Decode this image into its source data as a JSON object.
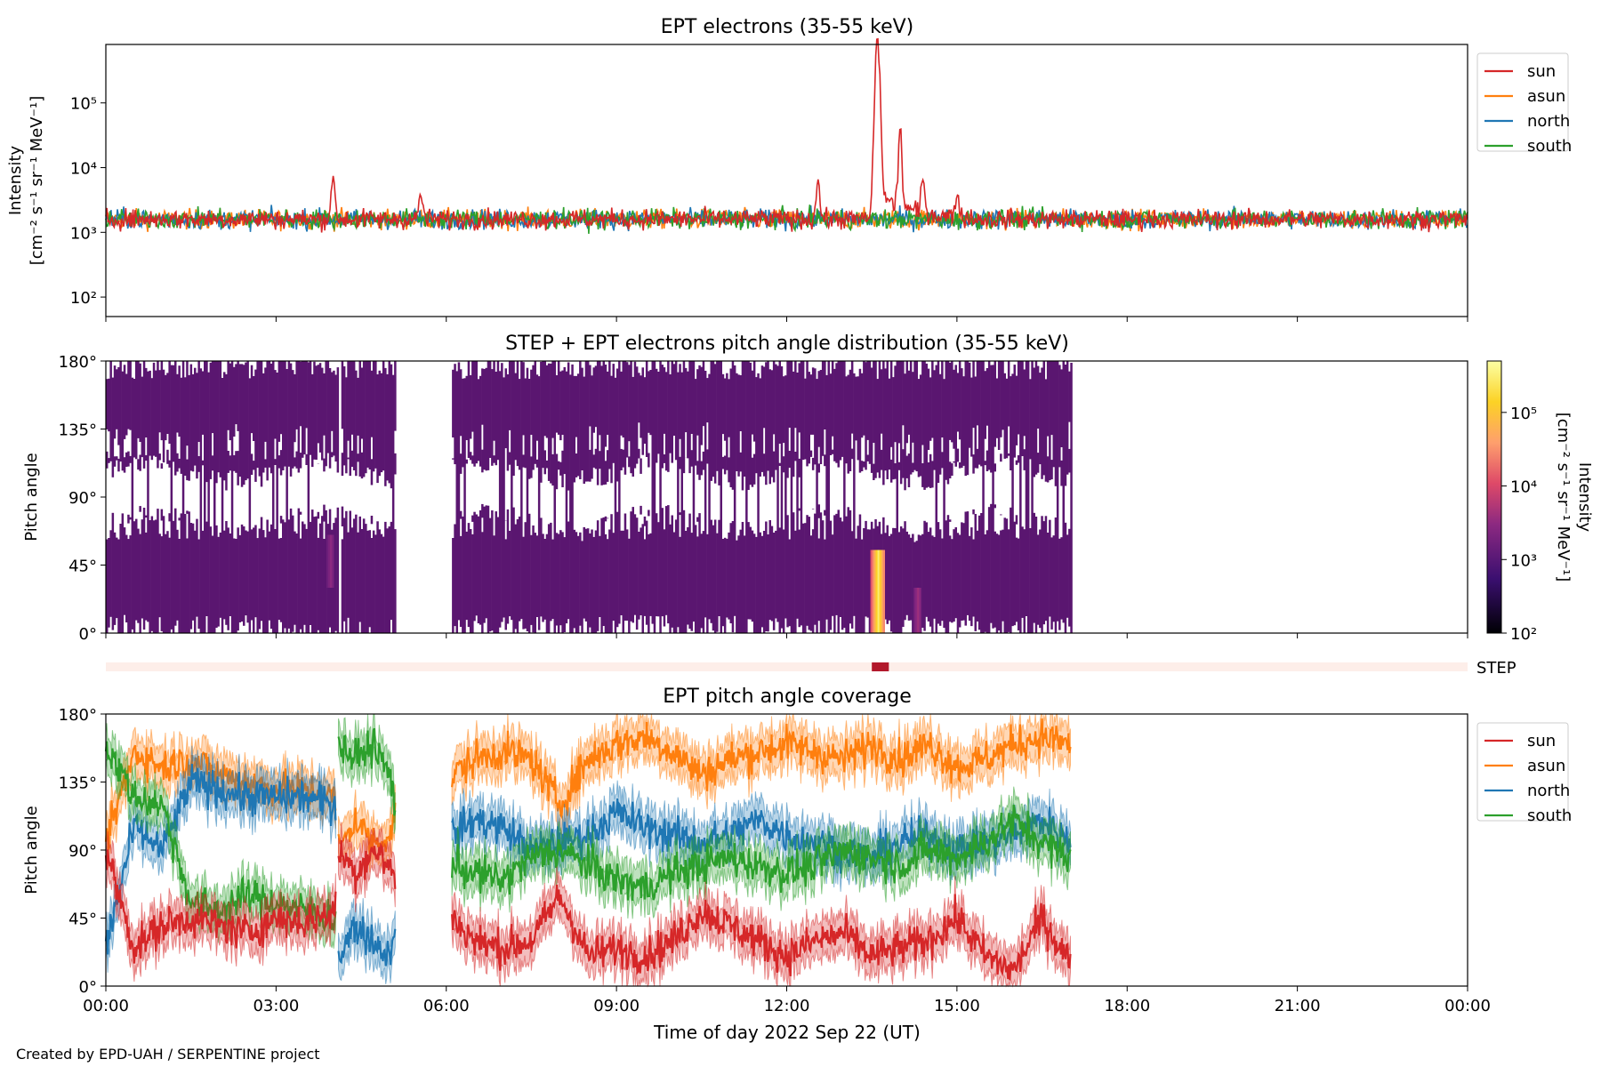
{
  "figure": {
    "credit": "Created by EPD-UAH / SERPENTINE project",
    "xlabel": "Time of day 2022 Sep 22 (UT)",
    "x_tick_labels": [
      "00:00",
      "03:00",
      "06:00",
      "09:00",
      "12:00",
      "15:00",
      "18:00",
      "21:00",
      "00:00"
    ]
  },
  "colors": {
    "sun": "#d62728",
    "asun": "#ff7f0e",
    "north": "#1f77b4",
    "south": "#2ca02c",
    "pad_fill": "#5a1670",
    "step_bar": "#fdeee9",
    "step_mark": "#b2182b"
  },
  "chart_data": [
    {
      "type": "line",
      "title": "EPT electrons (35-55 keV)",
      "ylabel_line1": "Intensity",
      "ylabel_line2": "[cm⁻² s⁻¹ sr⁻¹ MeV⁻¹]",
      "yscale": "log",
      "xlim_hours": [
        0,
        24
      ],
      "ylim": [
        50,
        800000
      ],
      "y_tick_labels": [
        "10²",
        "10³",
        "10⁴",
        "10⁵"
      ],
      "legend_position": "outside-right-top",
      "baseline": 1600,
      "series": [
        {
          "name": "sun",
          "peaks": [
            [
              4.0,
              7500
            ],
            [
              5.55,
              4000
            ],
            [
              12.55,
              6500
            ],
            [
              13.6,
              500000
            ],
            [
              14.0,
              28000
            ],
            [
              14.4,
              5000
            ],
            [
              15.0,
              3800
            ]
          ]
        },
        {
          "name": "asun",
          "peaks": []
        },
        {
          "name": "north",
          "peaks": []
        },
        {
          "name": "south",
          "peaks": []
        }
      ]
    },
    {
      "type": "heatmap",
      "title": "STEP + EPT electrons pitch angle distribution (35-55 keV)",
      "ylabel": "Pitch angle",
      "y_tick_labels": [
        "0°",
        "45°",
        "90°",
        "135°",
        "180°"
      ],
      "ylim": [
        0,
        180
      ],
      "xlim_hours": [
        0,
        24
      ],
      "data_intervals_hours": [
        [
          0,
          4.1
        ],
        [
          4.15,
          5.1
        ],
        [
          6.1,
          17.0
        ]
      ],
      "enhancements": [
        {
          "time": 3.95,
          "pitch_range": [
            30,
            65
          ],
          "intensity": 3000
        },
        {
          "time": 13.6,
          "pitch_range": [
            0,
            55
          ],
          "intensity": 300000
        },
        {
          "time": 14.3,
          "pitch_range": [
            0,
            30
          ],
          "intensity": 4000
        }
      ],
      "colorbar": {
        "label_line1": "Intensity",
        "label_line2": "[cm⁻² s⁻¹ sr⁻¹ MeV⁻¹]",
        "scale": "log",
        "range": [
          100,
          500000
        ],
        "tick_labels": [
          "10²",
          "10³",
          "10⁴",
          "10⁵"
        ]
      }
    },
    {
      "type": "bar",
      "label": "STEP",
      "xlim_hours": [
        0,
        24
      ],
      "marked_interval_hours": [
        13.5,
        13.8
      ]
    },
    {
      "type": "line",
      "title": "EPT pitch angle coverage",
      "ylabel": "Pitch angle",
      "y_tick_labels": [
        "0°",
        "45°",
        "90°",
        "135°",
        "180°"
      ],
      "ylim": [
        0,
        180
      ],
      "xlim_hours": [
        0,
        24
      ],
      "legend_position": "outside-right-top",
      "series": [
        {
          "name": "sun",
          "segments": [
            {
              "t": [
                0.0,
                0.5,
                1.0,
                1.5,
                2.0,
                2.5,
                3.0,
                3.5,
                4.05
              ],
              "pa": [
                90,
                25,
                40,
                45,
                40,
                35,
                45,
                42,
                50
              ]
            },
            {
              "t": [
                4.1,
                4.4,
                4.7,
                5.0,
                5.1
              ],
              "pa": [
                90,
                75,
                90,
                80,
                70
              ]
            },
            {
              "t": [
                6.1,
                6.5,
                7.0,
                7.5,
                8.0,
                8.5,
                9.0,
                9.5,
                10.0,
                10.5,
                11.0,
                11.5,
                12.0,
                12.5,
                13.0,
                13.5,
                14.0,
                14.5,
                15.0,
                15.5,
                16.0,
                16.5,
                17.0
              ],
              "pa": [
                45,
                30,
                25,
                30,
                60,
                20,
                25,
                20,
                30,
                50,
                40,
                30,
                20,
                30,
                35,
                20,
                25,
                30,
                45,
                20,
                10,
                45,
                15
              ]
            }
          ]
        },
        {
          "name": "asun",
          "segments": [
            {
              "t": [
                0.0,
                0.5,
                1.0,
                1.5,
                2.0,
                2.5,
                3.0,
                3.5,
                4.05
              ],
              "pa": [
                95,
                155,
                145,
                150,
                140,
                135,
                130,
                130,
                125
              ]
            },
            {
              "t": [
                4.1,
                4.4,
                4.7,
                5.0,
                5.1
              ],
              "pa": [
                90,
                110,
                95,
                100,
                110
              ]
            },
            {
              "t": [
                6.1,
                6.5,
                7.0,
                7.5,
                8.0,
                8.5,
                9.0,
                9.5,
                10.0,
                10.5,
                11.0,
                11.5,
                12.0,
                12.5,
                13.0,
                13.5,
                14.0,
                14.5,
                15.0,
                15.5,
                16.0,
                16.5,
                17.0
              ],
              "pa": [
                140,
                150,
                155,
                150,
                120,
                150,
                160,
                165,
                155,
                140,
                150,
                155,
                160,
                155,
                150,
                160,
                150,
                160,
                145,
                150,
                160,
                165,
                160
              ]
            }
          ]
        },
        {
          "name": "north",
          "segments": [
            {
              "t": [
                0.0,
                0.5,
                1.0,
                1.5,
                2.0,
                2.5,
                3.0,
                3.5,
                4.05
              ],
              "pa": [
                25,
                105,
                90,
                135,
                130,
                125,
                125,
                125,
                120
              ]
            },
            {
              "t": [
                4.1,
                4.4,
                4.7,
                5.0,
                5.1
              ],
              "pa": [
                20,
                40,
                30,
                20,
                45
              ]
            },
            {
              "t": [
                6.1,
                6.5,
                7.0,
                7.5,
                8.0,
                8.5,
                9.0,
                9.5,
                10.0,
                10.5,
                11.0,
                11.5,
                12.0,
                12.5,
                13.0,
                13.5,
                14.0,
                14.5,
                15.0,
                15.5,
                16.0,
                16.5,
                17.0
              ],
              "pa": [
                100,
                110,
                105,
                90,
                95,
                100,
                115,
                105,
                100,
                95,
                100,
                110,
                100,
                95,
                90,
                85,
                95,
                100,
                90,
                95,
                100,
                110,
                95
              ]
            }
          ]
        },
        {
          "name": "south",
          "segments": [
            {
              "t": [
                0.0,
                0.5,
                1.0,
                1.5,
                2.0,
                2.5,
                3.0,
                3.5,
                4.05
              ],
              "pa": [
                160,
                125,
                120,
                55,
                50,
                60,
                55,
                50,
                45
              ]
            },
            {
              "t": [
                4.1,
                4.4,
                4.7,
                5.0,
                5.1
              ],
              "pa": [
                160,
                150,
                160,
                140,
                120
              ]
            },
            {
              "t": [
                6.1,
                6.5,
                7.0,
                7.5,
                8.0,
                8.5,
                9.0,
                9.5,
                10.0,
                10.5,
                11.0,
                11.5,
                12.0,
                12.5,
                13.0,
                13.5,
                14.0,
                14.5,
                15.0,
                15.5,
                16.0,
                16.5,
                17.0
              ],
              "pa": [
                80,
                75,
                70,
                85,
                90,
                80,
                70,
                65,
                75,
                80,
                85,
                80,
                75,
                80,
                90,
                85,
                80,
                90,
                85,
                95,
                110,
                95,
                85
              ]
            }
          ]
        }
      ]
    }
  ]
}
